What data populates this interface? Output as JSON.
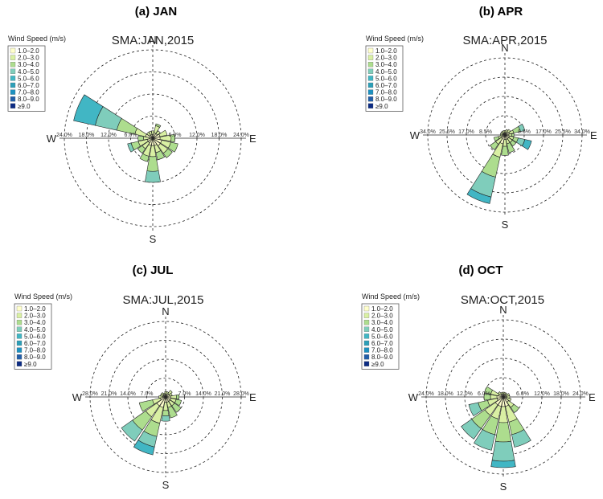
{
  "legend": {
    "title": "Wind Speed (m/s)",
    "bins": [
      "1.0–2.0",
      "2.0–3.0",
      "3.0–4.0",
      "4.0–5.0",
      "5.0–6.0",
      "6.0–7.0",
      "7.0–8.0",
      "8.0–9.0",
      "≥9.0"
    ],
    "colors": [
      "#ffffcc",
      "#d9f0a3",
      "#addd8e",
      "#7fcdbb",
      "#41b6c4",
      "#2c9fb8",
      "#1d91c0",
      "#225ea8",
      "#0c2c84"
    ]
  },
  "cardinals": {
    "n": "N",
    "e": "E",
    "s": "S",
    "w": "W"
  },
  "chart_data": [
    {
      "type": "windrose",
      "panel_label": "(a) JAN",
      "title": "SMA:JAN,2015",
      "rmax": 24.0,
      "ring_labels": [
        "6.0%",
        "12.0%",
        "18.0%",
        "24.0%"
      ],
      "sectors": [
        {
          "dir": 0,
          "cum": [
            1.0,
            2.0
          ]
        },
        {
          "dir": 22.5,
          "cum": [
            1.5,
            3.5,
            4.0
          ]
        },
        {
          "dir": 45,
          "cum": [
            1.5,
            2.5
          ]
        },
        {
          "dir": 67.5,
          "cum": [
            2.0,
            4.0
          ]
        },
        {
          "dir": 90,
          "cum": [
            2.0,
            5.0,
            6.0
          ]
        },
        {
          "dir": 112.5,
          "cum": [
            2.5,
            5.0,
            7.0
          ]
        },
        {
          "dir": 135,
          "cum": [
            2.5,
            5.0,
            6.5
          ]
        },
        {
          "dir": 157.5,
          "cum": [
            2.0,
            4.0,
            6.0
          ]
        },
        {
          "dir": 180,
          "cum": [
            2.0,
            5.0,
            9.0,
            12.0
          ]
        },
        {
          "dir": 202.5,
          "cum": [
            2.0,
            5.0,
            6.5
          ]
        },
        {
          "dir": 225,
          "cum": [
            1.5,
            3.5,
            5.0
          ]
        },
        {
          "dir": 247.5,
          "cum": [
            1.5,
            4.0,
            6.0,
            7.0
          ]
        },
        {
          "dir": 270,
          "cum": [
            1.0,
            2.5,
            4.0
          ]
        },
        {
          "dir": 292.5,
          "cum": [
            2.0,
            5.0,
            10.0,
            16.0,
            22.0
          ]
        },
        {
          "dir": 315,
          "cum": [
            1.0,
            2.0
          ]
        },
        {
          "dir": 337.5,
          "cum": [
            1.0,
            2.0
          ]
        }
      ]
    },
    {
      "type": "windrose",
      "panel_label": "(b) APR",
      "title": "SMA:APR,2015",
      "rmax": 34.0,
      "ring_labels": [
        "8.5%",
        "17.0%",
        "25.5%",
        "34.0%"
      ],
      "sectors": [
        {
          "dir": 0,
          "cum": [
            1.0,
            2.0
          ]
        },
        {
          "dir": 22.5,
          "cum": [
            1.0,
            2.5
          ]
        },
        {
          "dir": 45,
          "cum": [
            1.5,
            3.0
          ]
        },
        {
          "dir": 67.5,
          "cum": [
            2.0,
            4.0,
            7.0,
            9.0
          ]
        },
        {
          "dir": 90,
          "cum": [
            1.5,
            3.0,
            4.0
          ]
        },
        {
          "dir": 112.5,
          "cum": [
            2.0,
            4.0,
            6.0,
            9.0,
            12.0
          ]
        },
        {
          "dir": 135,
          "cum": [
            2.0,
            4.0,
            6.0
          ]
        },
        {
          "dir": 157.5,
          "cum": [
            2.0,
            4.0,
            8.0
          ]
        },
        {
          "dir": 180,
          "cum": [
            2.0,
            5.0,
            9.0
          ]
        },
        {
          "dir": 202.5,
          "cum": [
            4.0,
            10.0,
            19.0,
            28.0,
            31.0
          ]
        },
        {
          "dir": 225,
          "cum": [
            2.0,
            5.0,
            8.0
          ]
        },
        {
          "dir": 247.5,
          "cum": [
            1.5,
            3.0,
            5.0
          ]
        },
        {
          "dir": 270,
          "cum": [
            1.0,
            2.0
          ]
        },
        {
          "dir": 292.5,
          "cum": [
            1.0,
            2.0
          ]
        },
        {
          "dir": 315,
          "cum": [
            1.0,
            2.0
          ]
        },
        {
          "dir": 337.5,
          "cum": [
            1.0,
            2.0
          ]
        }
      ]
    },
    {
      "type": "windrose",
      "panel_label": "(c) JUL",
      "title": "SMA:JUL,2015",
      "rmax": 28.0,
      "ring_labels": [
        "7.0%",
        "14.0%",
        "21.0%",
        "28.0%"
      ],
      "sectors": [
        {
          "dir": 0,
          "cum": [
            1.0,
            2.0
          ]
        },
        {
          "dir": 22.5,
          "cum": [
            1.0,
            2.0
          ]
        },
        {
          "dir": 45,
          "cum": [
            1.5,
            3.0
          ]
        },
        {
          "dir": 67.5,
          "cum": [
            1.5,
            2.5
          ]
        },
        {
          "dir": 90,
          "cum": [
            2.0,
            4.0,
            5.0
          ]
        },
        {
          "dir": 112.5,
          "cum": [
            2.0,
            4.0,
            6.0
          ]
        },
        {
          "dir": 135,
          "cum": [
            2.0,
            4.0,
            7.0
          ]
        },
        {
          "dir": 157.5,
          "cum": [
            2.0,
            4.0,
            8.0
          ]
        },
        {
          "dir": 180,
          "cum": [
            2.0,
            5.0,
            7.0,
            9.0
          ]
        },
        {
          "dir": 202.5,
          "cum": [
            4.0,
            10.0,
            15.0,
            19.0,
            22.0
          ]
        },
        {
          "dir": 225,
          "cum": [
            4.0,
            9.0,
            15.0,
            20.0
          ]
        },
        {
          "dir": 247.5,
          "cum": [
            2.0,
            5.0,
            10.0
          ]
        },
        {
          "dir": 270,
          "cum": [
            1.0,
            2.5
          ]
        },
        {
          "dir": 292.5,
          "cum": [
            1.0,
            2.0
          ]
        },
        {
          "dir": 315,
          "cum": [
            1.0,
            2.0
          ]
        },
        {
          "dir": 337.5,
          "cum": [
            1.0,
            1.5
          ]
        }
      ]
    },
    {
      "type": "windrose",
      "panel_label": "(d) OCT",
      "title": "SMA:OCT,2015",
      "rmax": 24.0,
      "ring_labels": [
        "6.0%",
        "12.0%",
        "18.0%",
        "24.0%"
      ],
      "sectors": [
        {
          "dir": 0,
          "cum": [
            1.0,
            1.5
          ]
        },
        {
          "dir": 22.5,
          "cum": [
            1.0,
            1.5
          ]
        },
        {
          "dir": 45,
          "cum": [
            1.0,
            1.5
          ]
        },
        {
          "dir": 67.5,
          "cum": [
            1.0,
            2.0
          ]
        },
        {
          "dir": 90,
          "cum": [
            1.0,
            2.0
          ]
        },
        {
          "dir": 112.5,
          "cum": [
            1.0,
            2.5
          ]
        },
        {
          "dir": 135,
          "cum": [
            2.0,
            4.0,
            6.0
          ]
        },
        {
          "dir": 157.5,
          "cum": [
            3.0,
            8.0,
            12.0,
            16.0
          ]
        },
        {
          "dir": 180,
          "cum": [
            3.0,
            8.0,
            14.0,
            20.0,
            22.0
          ]
        },
        {
          "dir": 202.5,
          "cum": [
            3.0,
            7.0,
            12.0,
            17.0
          ]
        },
        {
          "dir": 225,
          "cum": [
            3.0,
            7.0,
            12.0,
            16.0
          ]
        },
        {
          "dir": 247.5,
          "cum": [
            2.0,
            5.0,
            8.0,
            11.0
          ]
        },
        {
          "dir": 270,
          "cum": [
            2.0,
            4.0,
            6.0
          ]
        },
        {
          "dir": 292.5,
          "cum": [
            1.5,
            4.0,
            6.0
          ]
        },
        {
          "dir": 315,
          "cum": [
            1.0,
            2.0
          ]
        },
        {
          "dir": 337.5,
          "cum": [
            1.0,
            1.5
          ]
        }
      ]
    }
  ]
}
